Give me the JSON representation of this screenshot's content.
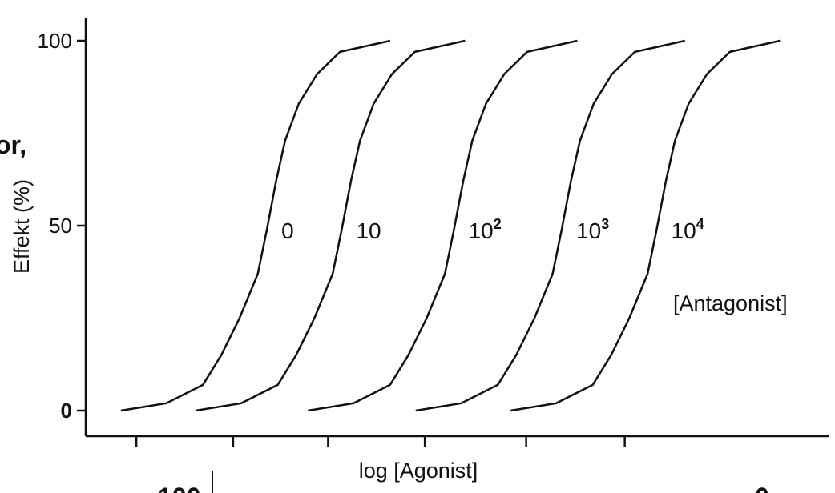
{
  "chart_data": {
    "type": "line",
    "title": "",
    "xlabel": "log [Agonist]",
    "ylabel": "Effekt (%)",
    "ylim": [
      0,
      100
    ],
    "yticks": [
      "0",
      "50",
      "100"
    ],
    "xticks": [
      "",
      "",
      "",
      "",
      "",
      ""
    ],
    "grid": false,
    "annotation": "[Antagonist]",
    "series_labels": [
      {
        "base": "0",
        "exp": ""
      },
      {
        "base": "10",
        "exp": ""
      },
      {
        "base": "10",
        "exp": "2"
      },
      {
        "base": "10",
        "exp": "3"
      },
      {
        "base": "10",
        "exp": "4"
      }
    ],
    "series": [
      {
        "x": [
          0.0,
          0.5,
          0.9,
          1.1,
          1.3,
          1.5,
          1.6,
          1.7,
          1.8,
          1.95,
          2.15,
          2.4,
          2.95
        ],
        "values": [
          0,
          2,
          7,
          15,
          25,
          37,
          49,
          62,
          73,
          83,
          91,
          97,
          100
        ]
      },
      {
        "x": [
          0.82,
          1.32,
          1.72,
          1.92,
          2.12,
          2.32,
          2.42,
          2.52,
          2.62,
          2.77,
          2.97,
          3.22,
          3.77
        ],
        "values": [
          0,
          2,
          7,
          15,
          25,
          37,
          49,
          62,
          73,
          83,
          91,
          97,
          100
        ]
      },
      {
        "x": [
          2.05,
          2.55,
          2.95,
          3.15,
          3.35,
          3.55,
          3.65,
          3.75,
          3.85,
          4.0,
          4.2,
          4.45,
          5.0
        ],
        "values": [
          0,
          2,
          7,
          15,
          25,
          37,
          49,
          62,
          73,
          83,
          91,
          97,
          100
        ]
      },
      {
        "x": [
          3.23,
          3.73,
          4.13,
          4.33,
          4.53,
          4.73,
          4.83,
          4.93,
          5.03,
          5.18,
          5.38,
          5.63,
          6.18
        ],
        "values": [
          0,
          2,
          7,
          15,
          25,
          37,
          49,
          62,
          73,
          83,
          91,
          97,
          100
        ]
      },
      {
        "x": [
          4.27,
          4.77,
          5.17,
          5.37,
          5.57,
          5.77,
          5.87,
          5.97,
          6.07,
          6.22,
          6.42,
          6.67,
          7.22
        ],
        "values": [
          0,
          2,
          7,
          15,
          25,
          37,
          49,
          62,
          73,
          83,
          91,
          97,
          100
        ]
      }
    ],
    "xlim": [
      -0.2,
      7.7
    ],
    "xtick_positions": [
      0.17,
      1.23,
      2.27,
      3.33,
      4.44,
      5.52
    ]
  },
  "fragments": {
    "left_text": "or,",
    "bottom_left_text": "100",
    "bottom_right_text": "0"
  }
}
